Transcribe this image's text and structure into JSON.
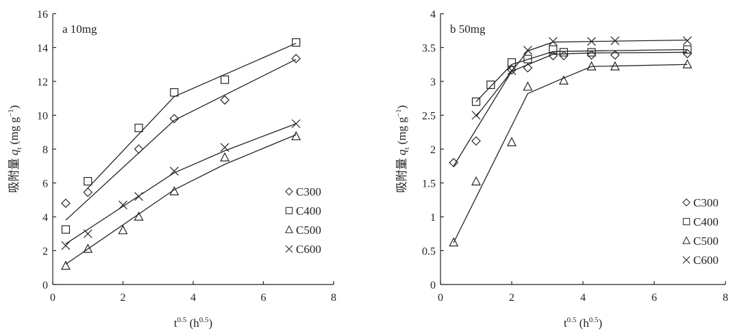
{
  "chart_data": [
    {
      "type": "scatter",
      "panel_label": "a 10mg",
      "xlabel_base": "t",
      "xlabel_exp": "0.5",
      "xlabel_unit_base": "h",
      "xlabel_unit_exp": "0.5",
      "ylabel_prefix": "吸附量",
      "ylabel_var": "q",
      "ylabel_sub": "t",
      "ylabel_unit": "(mg g",
      "ylabel_unit_exp": "−1",
      "ylabel_unit_close": ")",
      "xlim": [
        0,
        8
      ],
      "ylim": [
        0,
        16
      ],
      "xticks": [
        "0",
        "2",
        "4",
        "6",
        "8"
      ],
      "yticks": [
        "0",
        "2",
        "4",
        "6",
        "8",
        "10",
        "12",
        "14",
        "16"
      ],
      "legend_position": "lower-right",
      "series": [
        {
          "name": "C300",
          "marker": "diamond",
          "x": [
            0.37,
            1.0,
            2.45,
            3.46,
            4.9,
            6.93
          ],
          "y": [
            4.8,
            5.45,
            8.0,
            9.8,
            10.9,
            13.35
          ],
          "fit": [
            [
              0.37,
              3.8
            ],
            [
              3.46,
              9.7
            ],
            [
              6.93,
              13.3
            ]
          ]
        },
        {
          "name": "C400",
          "marker": "square",
          "x": [
            0.37,
            1.0,
            2.45,
            3.46,
            4.9,
            6.93
          ],
          "y": [
            3.25,
            6.1,
            9.25,
            11.35,
            12.1,
            14.3
          ],
          "fit": [
            [
              1.0,
              5.7
            ],
            [
              3.46,
              11.1
            ],
            [
              6.93,
              14.25
            ]
          ]
        },
        {
          "name": "C500",
          "marker": "triangle",
          "x": [
            0.37,
            1.0,
            2.0,
            2.45,
            3.46,
            4.9,
            6.93
          ],
          "y": [
            1.1,
            2.1,
            3.2,
            4.0,
            5.5,
            7.5,
            8.75
          ],
          "fit": [
            [
              0.37,
              1.2
            ],
            [
              3.46,
              5.6
            ],
            [
              4.9,
              7.1
            ],
            [
              6.93,
              8.85
            ]
          ]
        },
        {
          "name": "C600",
          "marker": "x",
          "x": [
            0.37,
            1.0,
            2.0,
            2.45,
            3.46,
            4.9,
            6.93
          ],
          "y": [
            2.3,
            3.0,
            4.7,
            5.2,
            6.7,
            8.1,
            9.5
          ],
          "fit": [
            [
              0.37,
              2.4
            ],
            [
              3.46,
              6.6
            ],
            [
              4.9,
              7.9
            ],
            [
              6.93,
              9.5
            ]
          ]
        }
      ]
    },
    {
      "type": "scatter",
      "panel_label": "b 50mg",
      "xlabel_base": "t",
      "xlabel_exp": "0.5",
      "xlabel_unit_base": "h",
      "xlabel_unit_exp": "0.5",
      "ylabel_prefix": "吸附量",
      "ylabel_var": "q",
      "ylabel_sub": "t",
      "ylabel_unit": "(mg g",
      "ylabel_unit_exp": "−1",
      "ylabel_unit_close": ")",
      "xlim": [
        0,
        8
      ],
      "ylim": [
        0,
        4
      ],
      "xticks": [
        "0",
        "2",
        "4",
        "6",
        "8"
      ],
      "yticks": [
        "0",
        "0.5",
        "1",
        "1.5",
        "2",
        "2.5",
        "3",
        "3.5",
        "4"
      ],
      "legend_position": "lower-right",
      "series": [
        {
          "name": "C300",
          "marker": "diamond",
          "x": [
            0.37,
            1.0,
            2.0,
            2.45,
            3.16,
            3.46,
            4.24,
            4.9,
            6.93
          ],
          "y": [
            1.8,
            2.12,
            3.17,
            3.2,
            3.38,
            3.38,
            3.39,
            3.39,
            3.41
          ],
          "fit": [
            [
              0.37,
              1.75
            ],
            [
              2.0,
              3.15
            ],
            [
              3.16,
              3.4
            ],
            [
              4.24,
              3.42
            ],
            [
              6.93,
              3.43
            ]
          ]
        },
        {
          "name": "C400",
          "marker": "square",
          "x": [
            1.0,
            1.41,
            2.0,
            2.45,
            3.16,
            3.46,
            4.24,
            6.93
          ],
          "y": [
            2.7,
            2.95,
            3.28,
            3.33,
            3.47,
            3.43,
            3.43,
            3.47
          ],
          "fit": [
            [
              1.0,
              2.7
            ],
            [
              2.0,
              3.25
            ],
            [
              3.16,
              3.44
            ],
            [
              4.24,
              3.45
            ],
            [
              6.93,
              3.47
            ]
          ]
        },
        {
          "name": "C500",
          "marker": "triangle",
          "x": [
            0.37,
            1.0,
            2.0,
            2.45,
            3.46,
            4.24,
            4.9,
            6.93
          ],
          "y": [
            0.62,
            1.52,
            2.1,
            2.92,
            3.01,
            3.22,
            3.22,
            3.25
          ],
          "fit": [
            [
              0.37,
              0.62
            ],
            [
              2.45,
              2.82
            ],
            [
              3.46,
              3.05
            ],
            [
              4.24,
              3.22
            ],
            [
              6.93,
              3.25
            ]
          ]
        },
        {
          "name": "C600",
          "marker": "x",
          "x": [
            1.0,
            2.0,
            2.45,
            3.16,
            4.24,
            4.9,
            6.93
          ],
          "y": [
            2.5,
            3.16,
            3.46,
            3.59,
            3.59,
            3.6,
            3.6
          ],
          "fit": [
            [
              1.0,
              2.48
            ],
            [
              2.45,
              3.45
            ],
            [
              3.16,
              3.58
            ],
            [
              4.24,
              3.59
            ],
            [
              6.93,
              3.61
            ]
          ]
        }
      ]
    }
  ]
}
